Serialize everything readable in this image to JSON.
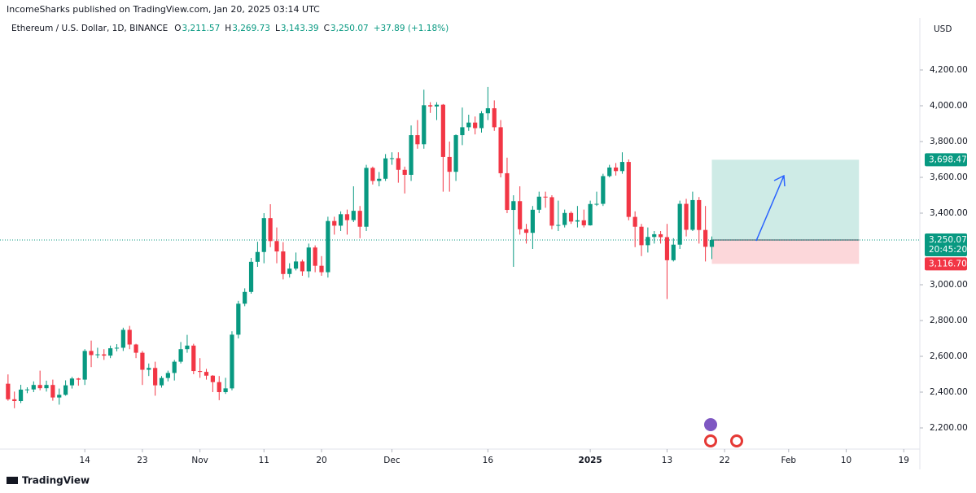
{
  "header": "IncomeSharks published on TradingView.com, Jan 20, 2025 03:14 UTC",
  "footer": "TradingView",
  "chart_data": {
    "type": "candlestick",
    "symbol": "Ethereum / U.S. Dollar, 1D, BINANCE",
    "legend": [
      {
        "label": "O",
        "value": "3,211.57"
      },
      {
        "label": "H",
        "value": "3,269.73"
      },
      {
        "label": "L",
        "value": "3,143.39"
      },
      {
        "label": "C",
        "value": "3,250.07"
      }
    ],
    "change": "+37.89 (+1.18%)",
    "currency": "USD",
    "up_color": "#089981",
    "down_color": "#f23645",
    "x": [
      "Oct 2",
      "Oct 3",
      "Oct 4",
      "Oct 5",
      "Oct 6",
      "Oct 7",
      "Oct 8",
      "Oct 9",
      "Oct 10",
      "Oct 11",
      "Oct 12",
      "Oct 13",
      "Oct 14",
      "Oct 15",
      "Oct 16",
      "Oct 17",
      "Oct 18",
      "Oct 19",
      "Oct 20",
      "Oct 21",
      "Oct 22",
      "Oct 23",
      "Oct 24",
      "Oct 25",
      "Oct 26",
      "Oct 27",
      "Oct 28",
      "Oct 29",
      "Oct 30",
      "Oct 31",
      "Nov 1",
      "Nov 2",
      "Nov 3",
      "Nov 4",
      "Nov 5",
      "Nov 6",
      "Nov 7",
      "Nov 8",
      "Nov 9",
      "Nov 10",
      "Nov 11",
      "Nov 12",
      "Nov 13",
      "Nov 14",
      "Nov 15",
      "Nov 16",
      "Nov 17",
      "Nov 18",
      "Nov 19",
      "Nov 20",
      "Nov 21",
      "Nov 22",
      "Nov 23",
      "Nov 24",
      "Nov 25",
      "Nov 26",
      "Nov 27",
      "Nov 28",
      "Nov 29",
      "Nov 30",
      "Dec 1",
      "Dec 2",
      "Dec 3",
      "Dec 4",
      "Dec 5",
      "Dec 6",
      "Dec 7",
      "Dec 8",
      "Dec 9",
      "Dec 10",
      "Dec 11",
      "Dec 12",
      "Dec 13",
      "Dec 14",
      "Dec 15",
      "Dec 16",
      "Dec 17",
      "Dec 18",
      "Dec 19",
      "Dec 20",
      "Dec 21",
      "Dec 22",
      "Dec 23",
      "Dec 24",
      "Dec 25",
      "Dec 26",
      "Dec 27",
      "Dec 28",
      "Dec 29",
      "Dec 30",
      "Dec 31",
      "Jan 1",
      "Jan 2",
      "Jan 3",
      "Jan 4",
      "Jan 5",
      "Jan 6",
      "Jan 7",
      "Jan 8",
      "Jan 9",
      "Jan 10",
      "Jan 11",
      "Jan 12",
      "Jan 13",
      "Jan 14",
      "Jan 15",
      "Jan 16",
      "Jan 17",
      "Jan 18",
      "Jan 19",
      "Jan 20"
    ],
    "open": [
      2447,
      2360,
      2350,
      2414,
      2415,
      2440,
      2422,
      2440,
      2370,
      2385,
      2438,
      2476,
      2470,
      2630,
      2607,
      2611,
      2604,
      2645,
      2648,
      2748,
      2666,
      2620,
      2525,
      2535,
      2438,
      2479,
      2507,
      2570,
      2640,
      2660,
      2518,
      2513,
      2492,
      2456,
      2400,
      2421,
      2721,
      2894,
      2960,
      3128,
      3183,
      3372,
      3244,
      3186,
      3060,
      3090,
      3130,
      3075,
      3208,
      3106,
      3070,
      3356,
      3330,
      3394,
      3361,
      3413,
      3324,
      3653,
      3580,
      3592,
      3706,
      3707,
      3642,
      3614,
      3836,
      3785,
      4003,
      3996,
      4006,
      3714,
      3631,
      3836,
      3880,
      3906,
      3875,
      3958,
      3986,
      3880,
      3623,
      3418,
      3467,
      3310,
      3290,
      3419,
      3492,
      3489,
      3330,
      3334,
      3401,
      3353,
      3360,
      3332,
      3451,
      3452,
      3607,
      3655,
      3635,
      3686,
      3379,
      3324,
      3221,
      3267,
      3282,
      3266,
      3137,
      3224,
      3452,
      3307,
      3473,
      3306,
      3211.57
    ],
    "high": [
      2499,
      2403,
      2441,
      2427,
      2460,
      2520,
      2464,
      2470,
      2420,
      2466,
      2485,
      2480,
      2640,
      2688,
      2648,
      2640,
      2660,
      2668,
      2760,
      2770,
      2670,
      2630,
      2560,
      2570,
      2490,
      2520,
      2580,
      2680,
      2720,
      2670,
      2590,
      2530,
      2495,
      2490,
      2480,
      2740,
      2910,
      2980,
      3150,
      3240,
      3400,
      3450,
      3320,
      3238,
      3120,
      3180,
      3140,
      3230,
      3220,
      3160,
      3380,
      3380,
      3410,
      3420,
      3550,
      3440,
      3670,
      3660,
      3630,
      3730,
      3740,
      3740,
      3660,
      3890,
      3920,
      4090,
      4020,
      4020,
      4010,
      3800,
      3840,
      3990,
      3950,
      3940,
      3970,
      4105,
      4030,
      3920,
      3710,
      3500,
      3550,
      3340,
      3440,
      3520,
      3520,
      3500,
      3470,
      3420,
      3410,
      3440,
      3420,
      3470,
      3520,
      3620,
      3670,
      3680,
      3740,
      3700,
      3410,
      3340,
      3320,
      3300,
      3300,
      3340,
      3260,
      3470,
      3480,
      3520,
      3490,
      3440,
      3269.73
    ],
    "low": [
      2352,
      2310,
      2339,
      2394,
      2400,
      2410,
      2403,
      2352,
      2330,
      2380,
      2420,
      2436,
      2440,
      2540,
      2590,
      2580,
      2590,
      2628,
      2630,
      2640,
      2590,
      2440,
      2490,
      2380,
      2425,
      2460,
      2465,
      2560,
      2620,
      2500,
      2480,
      2470,
      2400,
      2355,
      2390,
      2410,
      2700,
      2880,
      2950,
      3100,
      3120,
      3210,
      3120,
      3030,
      3040,
      3080,
      3050,
      3040,
      3070,
      3050,
      3040,
      3280,
      3300,
      3280,
      3350,
      3260,
      3300,
      3560,
      3550,
      3580,
      3670,
      3570,
      3510,
      3580,
      3760,
      3760,
      3960,
      3920,
      3520,
      3520,
      3580,
      3780,
      3860,
      3840,
      3850,
      3920,
      3860,
      3600,
      3400,
      3100,
      3280,
      3230,
      3200,
      3400,
      3430,
      3310,
      3300,
      3320,
      3340,
      3320,
      3320,
      3330,
      3440,
      3440,
      3600,
      3610,
      3620,
      3360,
      3210,
      3160,
      3180,
      3230,
      3230,
      2920,
      3130,
      3200,
      3270,
      3300,
      3230,
      3130,
      3143.39
    ],
    "close": [
      2360,
      2350,
      2414,
      2415,
      2440,
      2422,
      2440,
      2370,
      2385,
      2438,
      2476,
      2470,
      2630,
      2607,
      2611,
      2604,
      2645,
      2648,
      2748,
      2666,
      2620,
      2525,
      2535,
      2438,
      2479,
      2507,
      2570,
      2640,
      2660,
      2518,
      2513,
      2492,
      2456,
      2400,
      2421,
      2721,
      2894,
      2960,
      3128,
      3183,
      3372,
      3244,
      3186,
      3060,
      3090,
      3130,
      3075,
      3208,
      3106,
      3070,
      3356,
      3330,
      3394,
      3361,
      3413,
      3324,
      3653,
      3580,
      3592,
      3706,
      3707,
      3642,
      3614,
      3836,
      3785,
      4003,
      3996,
      4006,
      3714,
      3631,
      3836,
      3880,
      3906,
      3875,
      3958,
      3986,
      3880,
      3623,
      3418,
      3467,
      3310,
      3290,
      3419,
      3492,
      3489,
      3330,
      3334,
      3401,
      3353,
      3360,
      3332,
      3451,
      3452,
      3607,
      3655,
      3635,
      3686,
      3379,
      3324,
      3221,
      3267,
      3282,
      3266,
      3137,
      3224,
      3452,
      3307,
      3473,
      3306,
      3212,
      3250.07
    ],
    "xlim": [
      "Oct 1",
      "Feb 21"
    ],
    "xticks": [
      {
        "value": "Oct 14",
        "label": "14"
      },
      {
        "value": "Oct 23",
        "label": "23"
      },
      {
        "value": "Nov 1",
        "label": "Nov"
      },
      {
        "value": "Nov 11",
        "label": "11"
      },
      {
        "value": "Nov 20",
        "label": "20"
      },
      {
        "value": "Dec 1",
        "label": "Dec"
      },
      {
        "value": "Dec 16",
        "label": "16"
      },
      {
        "value": "Jan 1",
        "label": "2025"
      },
      {
        "value": "Jan 13",
        "label": "13"
      },
      {
        "value": "Jan 22",
        "label": "22"
      },
      {
        "value": "Feb 1",
        "label": "Feb"
      },
      {
        "value": "Feb 10",
        "label": "10"
      },
      {
        "value": "Feb 19",
        "label": "19"
      }
    ],
    "ylim": [
      2090,
      4380
    ],
    "yticks": [
      {
        "value": 2200,
        "label": "2,200.00"
      },
      {
        "value": 2400,
        "label": "2,400.00"
      },
      {
        "value": 2600,
        "label": "2,600.00"
      },
      {
        "value": 2800,
        "label": "2,800.00"
      },
      {
        "value": 3000,
        "label": "3,000.00"
      },
      {
        "value": 3400,
        "label": "3,400.00"
      },
      {
        "value": 3600,
        "label": "3,600.00"
      },
      {
        "value": 3800,
        "label": "3,800.00"
      },
      {
        "value": 4000,
        "label": "4,000.00"
      },
      {
        "value": 4200,
        "label": "4,200.00"
      }
    ],
    "position": {
      "start": "Jan 20",
      "end": "Feb 12",
      "target": {
        "value": 3698.47,
        "label": "3,698.47"
      },
      "entry": {
        "value": 3250.07,
        "label": "3,250.07"
      },
      "stop": {
        "value": 3116.7,
        "label": "3,116.70"
      },
      "countdown": "20:45:20"
    }
  }
}
